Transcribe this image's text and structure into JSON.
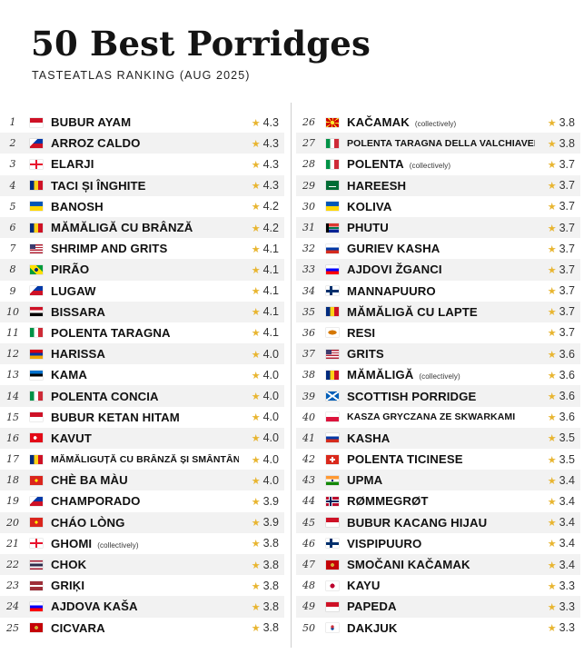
{
  "header": {
    "title": "50 Best Porridges",
    "subtitle": "TASTEATLAS RANKING (AUG 2025)"
  },
  "star_color": "#e8b530",
  "left": [
    {
      "rank": "1",
      "name": "BUBUR AYAM",
      "note": "",
      "rating": "4.3",
      "flag": "indonesia-flag"
    },
    {
      "rank": "2",
      "name": "ARROZ CALDO",
      "note": "",
      "rating": "4.3",
      "flag": "philippines-flag"
    },
    {
      "rank": "3",
      "name": "ELARJI",
      "note": "",
      "rating": "4.3",
      "flag": "georgia-flag"
    },
    {
      "rank": "4",
      "name": "TACI ȘI ÎNGHITE",
      "note": "",
      "rating": "4.3",
      "flag": "romania-flag"
    },
    {
      "rank": "5",
      "name": "BANOSH",
      "note": "",
      "rating": "4.2",
      "flag": "ukraine-flag"
    },
    {
      "rank": "6",
      "name": "MĂMĂLIGĂ CU BRÂNZĂ",
      "note": "",
      "rating": "4.2",
      "flag": "romania-flag"
    },
    {
      "rank": "7",
      "name": "SHRIMP AND GRITS",
      "note": "",
      "rating": "4.1",
      "flag": "usa-flag"
    },
    {
      "rank": "8",
      "name": "PIRÃO",
      "note": "",
      "rating": "4.1",
      "flag": "brazil-flag"
    },
    {
      "rank": "9",
      "name": "LUGAW",
      "note": "",
      "rating": "4.1",
      "flag": "philippines-flag"
    },
    {
      "rank": "10",
      "name": "BISSARA",
      "note": "",
      "rating": "4.1",
      "flag": "egypt-flag"
    },
    {
      "rank": "11",
      "name": "POLENTA TARAGNA",
      "note": "",
      "rating": "4.1",
      "flag": "italy-flag"
    },
    {
      "rank": "12",
      "name": "HARISSA",
      "note": "",
      "rating": "4.0",
      "flag": "armenia-flag"
    },
    {
      "rank": "13",
      "name": "KAMA",
      "note": "",
      "rating": "4.0",
      "flag": "estonia-flag"
    },
    {
      "rank": "14",
      "name": "POLENTA CONCIA",
      "note": "",
      "rating": "4.0",
      "flag": "italy-flag"
    },
    {
      "rank": "15",
      "name": "BUBUR KETAN HITAM",
      "note": "",
      "rating": "4.0",
      "flag": "indonesia-flag"
    },
    {
      "rank": "16",
      "name": "KAVUT",
      "note": "",
      "rating": "4.0",
      "flag": "turkey-flag"
    },
    {
      "rank": "17",
      "name": "MĂMĂLIGUȚĂ CU BRÂNZĂ ȘI SMÂNTÂNĂ",
      "note": "",
      "rating": "4.0",
      "flag": "romania-flag",
      "small": true
    },
    {
      "rank": "18",
      "name": "CHÈ BA MÀU",
      "note": "",
      "rating": "4.0",
      "flag": "vietnam-flag"
    },
    {
      "rank": "19",
      "name": "CHAMPORADO",
      "note": "",
      "rating": "3.9",
      "flag": "philippines-flag"
    },
    {
      "rank": "20",
      "name": "CHÁO LÒNG",
      "note": "",
      "rating": "3.9",
      "flag": "vietnam-flag"
    },
    {
      "rank": "21",
      "name": "GHOMI",
      "note": "(collectively)",
      "rating": "3.8",
      "flag": "georgia-flag"
    },
    {
      "rank": "22",
      "name": "CHOK",
      "note": "",
      "rating": "3.8",
      "flag": "thailand-flag"
    },
    {
      "rank": "23",
      "name": "GRIĶI",
      "note": "",
      "rating": "3.8",
      "flag": "latvia-flag"
    },
    {
      "rank": "24",
      "name": "AJDOVA KAŠA",
      "note": "",
      "rating": "3.8",
      "flag": "slovenia-flag"
    },
    {
      "rank": "25",
      "name": "CICVARA",
      "note": "",
      "rating": "3.8",
      "flag": "montenegro-flag"
    }
  ],
  "right": [
    {
      "rank": "26",
      "name": "KAČAMAK",
      "note": "(collectively)",
      "rating": "3.8",
      "flag": "north-macedonia-flag"
    },
    {
      "rank": "27",
      "name": "POLENTA TARAGNA DELLA VALCHIAVENNA",
      "note": "",
      "rating": "3.8",
      "flag": "italy-flag",
      "small": true
    },
    {
      "rank": "28",
      "name": "POLENTA",
      "note": "(collectively)",
      "rating": "3.7",
      "flag": "italy-flag"
    },
    {
      "rank": "29",
      "name": "HAREESH",
      "note": "",
      "rating": "3.7",
      "flag": "saudi-arabia-flag"
    },
    {
      "rank": "30",
      "name": "KOLIVA",
      "note": "",
      "rating": "3.7",
      "flag": "ukraine-flag"
    },
    {
      "rank": "31",
      "name": "PHUTU",
      "note": "",
      "rating": "3.7",
      "flag": "south-africa-flag"
    },
    {
      "rank": "32",
      "name": "GURIEV KASHA",
      "note": "",
      "rating": "3.7",
      "flag": "russia-flag"
    },
    {
      "rank": "33",
      "name": "AJDOVI ŽGANCI",
      "note": "",
      "rating": "3.7",
      "flag": "slovenia-flag"
    },
    {
      "rank": "34",
      "name": "MANNAPUURO",
      "note": "",
      "rating": "3.7",
      "flag": "finland-flag"
    },
    {
      "rank": "35",
      "name": "MĂMĂLIGĂ CU LAPTE",
      "note": "",
      "rating": "3.7",
      "flag": "romania-flag"
    },
    {
      "rank": "36",
      "name": "RESI",
      "note": "",
      "rating": "3.7",
      "flag": "cyprus-flag"
    },
    {
      "rank": "37",
      "name": "GRITS",
      "note": "",
      "rating": "3.6",
      "flag": "usa-flag"
    },
    {
      "rank": "38",
      "name": "MĂMĂLIGĂ",
      "note": "(collectively)",
      "rating": "3.6",
      "flag": "romania-flag"
    },
    {
      "rank": "39",
      "name": "SCOTTISH PORRIDGE",
      "note": "",
      "rating": "3.6",
      "flag": "scotland-flag"
    },
    {
      "rank": "40",
      "name": "KASZA GRYCZANA ZE SKWARKAMI",
      "note": "",
      "rating": "3.6",
      "flag": "poland-flag",
      "small": true
    },
    {
      "rank": "41",
      "name": "KASHA",
      "note": "",
      "rating": "3.5",
      "flag": "russia-flag"
    },
    {
      "rank": "42",
      "name": "POLENTA TICINESE",
      "note": "",
      "rating": "3.5",
      "flag": "switzerland-flag"
    },
    {
      "rank": "43",
      "name": "UPMA",
      "note": "",
      "rating": "3.4",
      "flag": "india-flag"
    },
    {
      "rank": "44",
      "name": "RØMMEGRØT",
      "note": "",
      "rating": "3.4",
      "flag": "norway-flag"
    },
    {
      "rank": "45",
      "name": "BUBUR KACANG HIJAU",
      "note": "",
      "rating": "3.4",
      "flag": "indonesia-flag"
    },
    {
      "rank": "46",
      "name": "VISPIPUURO",
      "note": "",
      "rating": "3.4",
      "flag": "finland-flag"
    },
    {
      "rank": "47",
      "name": "SMOČANI KAČAMAK",
      "note": "",
      "rating": "3.4",
      "flag": "montenegro-flag"
    },
    {
      "rank": "48",
      "name": "KAYU",
      "note": "",
      "rating": "3.3",
      "flag": "japan-flag"
    },
    {
      "rank": "49",
      "name": "PAPEDA",
      "note": "",
      "rating": "3.3",
      "flag": "indonesia-flag"
    },
    {
      "rank": "50",
      "name": "DAKJUK",
      "note": "",
      "rating": "3.3",
      "flag": "south-korea-flag"
    }
  ]
}
